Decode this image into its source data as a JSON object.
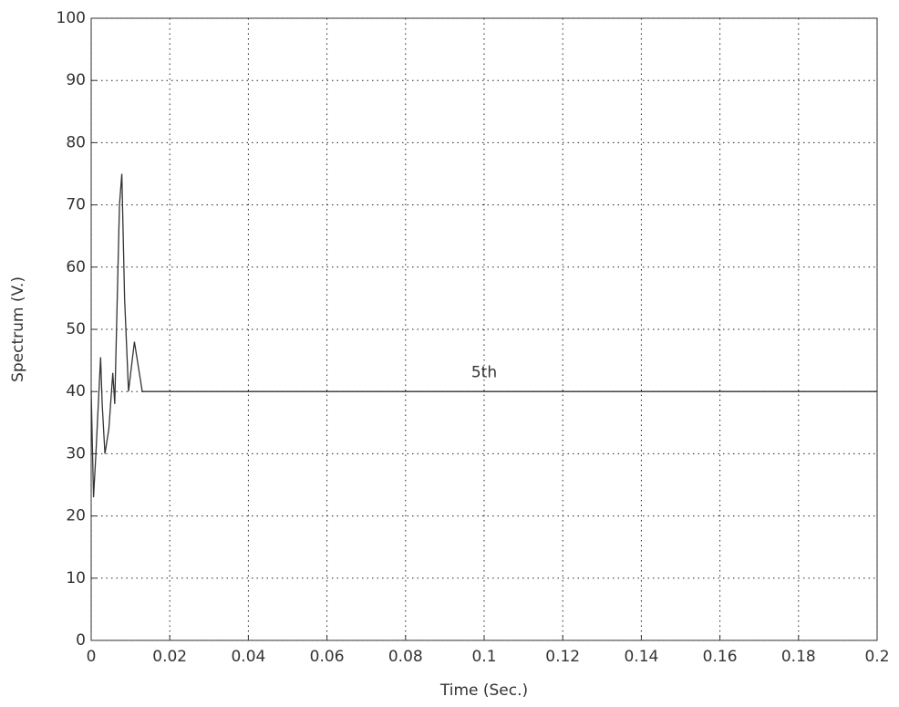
{
  "chart_data": {
    "type": "line",
    "x_label": "Time (Sec.)",
    "y_label": "Spectrum (V.)",
    "x": [
      0,
      0.0006,
      0.0012,
      0.0024,
      0.0028,
      0.0035,
      0.0045,
      0.0055,
      0.006,
      0.0072,
      0.0078,
      0.0085,
      0.0095,
      0.011,
      0.0125,
      0.013,
      0.2
    ],
    "series": [
      {
        "color": "#333333",
        "values": [
          40,
          23,
          30,
          45.5,
          38,
          30,
          34,
          43,
          38,
          70,
          75,
          55,
          40,
          48,
          42,
          40,
          40
        ]
      }
    ],
    "annotations": [
      {
        "text": "5th",
        "x": 0.1,
        "y": 43
      }
    ],
    "xlim": [
      0,
      0.2
    ],
    "ylim": [
      0,
      100
    ],
    "xticks": [
      0,
      0.02,
      0.04,
      0.06,
      0.08,
      0.1,
      0.12,
      0.14,
      0.16,
      0.18,
      0.2
    ],
    "yticks": [
      0,
      10,
      20,
      30,
      40,
      50,
      60,
      70,
      80,
      90,
      100
    ],
    "grid": true
  }
}
